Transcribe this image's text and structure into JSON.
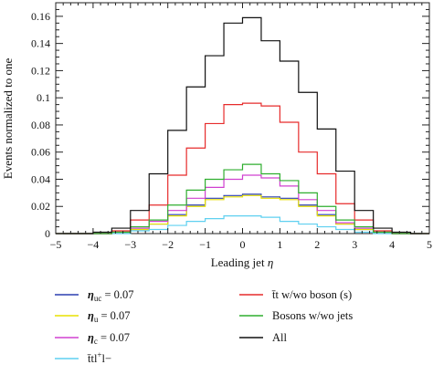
{
  "chart_data": {
    "type": "line",
    "xlabel": "Leading jet η",
    "ylabel": "Events normalized to one",
    "xlim": [
      -5,
      5
    ],
    "ylim": [
      0,
      0.17
    ],
    "xticks": [
      -5,
      -4,
      -3,
      -2,
      -1,
      0,
      1,
      2,
      3,
      4,
      5
    ],
    "yticks": [
      0,
      0.02,
      0.04,
      0.06,
      0.08,
      0.1,
      0.12,
      0.14,
      0.16
    ],
    "ytick_labels": [
      "0",
      "0.02",
      "0.04",
      "0.06",
      "0.08",
      "0.1",
      "0.12",
      "0.14",
      "0.16"
    ],
    "grid": false,
    "legend_placement": "below",
    "bin_edges": [
      -5,
      -4.5,
      -4,
      -3.5,
      -3,
      -2.5,
      -2,
      -1.5,
      -1,
      -0.5,
      0,
      0.5,
      1,
      1.5,
      2,
      2.5,
      3,
      3.5,
      4,
      4.5,
      5
    ],
    "series": [
      {
        "name": "ηuc = 0.07",
        "color": "#2b3fb0",
        "values": [
          0,
          0,
          0,
          0.001,
          0.003,
          0.007,
          0.014,
          0.021,
          0.026,
          0.028,
          0.029,
          0.027,
          0.026,
          0.021,
          0.014,
          0.007,
          0.003,
          0.001,
          0,
          0
        ]
      },
      {
        "name": "ηu = 0.07",
        "color": "#e8e000",
        "values": [
          0,
          0,
          0,
          0.001,
          0.003,
          0.007,
          0.013,
          0.02,
          0.025,
          0.027,
          0.028,
          0.026,
          0.025,
          0.02,
          0.013,
          0.007,
          0.003,
          0.001,
          0,
          0
        ]
      },
      {
        "name": "ηc = 0.07",
        "color": "#d040d0",
        "values": [
          0,
          0,
          0,
          0.001,
          0.004,
          0.009,
          0.017,
          0.026,
          0.034,
          0.04,
          0.043,
          0.041,
          0.035,
          0.025,
          0.017,
          0.008,
          0.004,
          0.001,
          0,
          0
        ]
      },
      {
        "name": "t̄tl+l−",
        "color": "#5fd0f0",
        "values": [
          0,
          0,
          0,
          0,
          0.002,
          0.003,
          0.006,
          0.009,
          0.011,
          0.013,
          0.013,
          0.012,
          0.009,
          0.007,
          0.005,
          0.003,
          0.001,
          0,
          0,
          0
        ]
      },
      {
        "name": "t̄t w/wo boson (s)",
        "color": "#e62b2b",
        "values": [
          0,
          0,
          0,
          0.002,
          0.01,
          0.021,
          0.043,
          0.063,
          0.081,
          0.095,
          0.096,
          0.094,
          0.082,
          0.06,
          0.044,
          0.022,
          0.01,
          0.002,
          0,
          0
        ]
      },
      {
        "name": "Bosons w/wo jets",
        "color": "#2fae2f",
        "values": [
          0,
          0,
          0,
          0.001,
          0.005,
          0.01,
          0.021,
          0.032,
          0.04,
          0.047,
          0.051,
          0.044,
          0.039,
          0.03,
          0.02,
          0.01,
          0.005,
          0.001,
          0,
          0
        ]
      },
      {
        "name": "All",
        "color": "#111111",
        "values": [
          0,
          0,
          0.001,
          0.004,
          0.017,
          0.044,
          0.076,
          0.108,
          0.131,
          0.155,
          0.159,
          0.142,
          0.127,
          0.104,
          0.077,
          0.046,
          0.017,
          0.004,
          0.001,
          0
        ]
      }
    ],
    "legend": {
      "left": [
        {
          "series": 0,
          "main": "η",
          "sub": "uc",
          "sup": "",
          "rest": " = 0.07"
        },
        {
          "series": 1,
          "main": "η",
          "sub": "u",
          "sup": "",
          "rest": " = 0.07"
        },
        {
          "series": 2,
          "main": "η",
          "sub": "c",
          "sup": "",
          "rest": " = 0.07"
        },
        {
          "series": 3,
          "main": "t̄tl",
          "sub": "",
          "sup": "+",
          "rest": "l−"
        }
      ],
      "right": [
        {
          "series": 4,
          "main": "t̄t w/wo boson (s)",
          "sub": "",
          "sup": "",
          "rest": ""
        },
        {
          "series": 5,
          "main": "Bosons w/wo jets",
          "sub": "",
          "sup": "",
          "rest": ""
        },
        {
          "series": 6,
          "main": "All",
          "sub": "",
          "sup": "",
          "rest": ""
        }
      ]
    }
  }
}
